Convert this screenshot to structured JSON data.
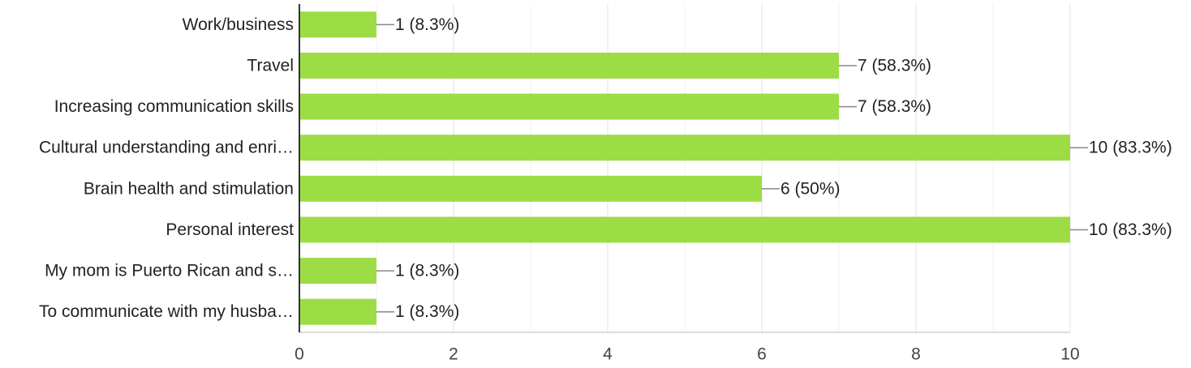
{
  "chart_data": {
    "type": "bar",
    "orientation": "horizontal",
    "categories": [
      "Work/business",
      "Travel",
      "Increasing communication skills",
      "Cultural understanding and enri…",
      "Brain health and stimulation",
      "Personal interest",
      "My mom is Puerto Rican and s…",
      "To communicate with my husba…"
    ],
    "values": [
      1,
      7,
      7,
      10,
      6,
      10,
      1,
      1
    ],
    "value_labels": [
      "1 (8.3%)",
      "7 (58.3%)",
      "7 (58.3%)",
      "10 (83.3%)",
      "6 (50%)",
      "10 (83.3%)",
      "1 (8.3%)",
      "1 (8.3%)"
    ],
    "color": "#9cdc45",
    "xlim": [
      0,
      10
    ],
    "xticks": [
      0,
      2,
      4,
      6,
      8,
      10
    ],
    "minor_xticks": [
      1,
      3,
      5,
      7,
      9
    ],
    "grid": true
  }
}
